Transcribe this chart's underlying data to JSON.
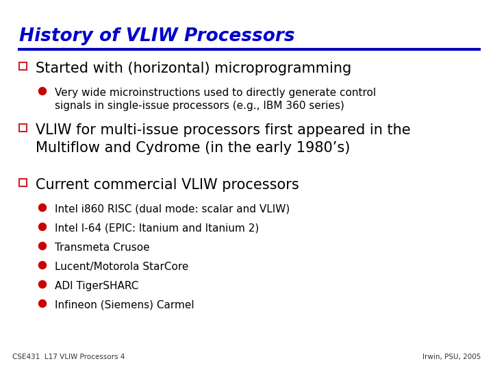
{
  "title": "History of VLIW Processors",
  "title_color": "#0000CC",
  "title_underline_color": "#0000BB",
  "background_color": "#FFFFFF",
  "bullet_color": "#CC0000",
  "text_color": "#000000",
  "footer_left": "CSE431  L17 VLIW Processors 4",
  "footer_right": "Irwin, PSU, 2005",
  "sq_face": "#FFFFFF",
  "sq_edge": "#CC2222",
  "items": [
    {
      "level": 1,
      "text": "Started with (horizontal) microprogramming",
      "font_size": 15
    },
    {
      "level": 2,
      "text": "Very wide microinstructions used to directly generate control\nsignals in single-issue processors (e.g., IBM 360 series)",
      "font_size": 11
    },
    {
      "level": 1,
      "text": "VLIW for multi-issue processors first appeared in the\nMultiflow and Cydrome (in the early 1980’s)",
      "font_size": 15
    },
    {
      "level": 1,
      "text": "Current commercial VLIW processors",
      "font_size": 15
    },
    {
      "level": 2,
      "text": "Intel i860 RISC (dual mode: scalar and VLIW)",
      "font_size": 11
    },
    {
      "level": 2,
      "text": "Intel I-64 (EPIC: Itanium and Itanium 2)",
      "font_size": 11
    },
    {
      "level": 2,
      "text": "Transmeta Crusoe",
      "font_size": 11
    },
    {
      "level": 2,
      "text": "Lucent/Motorola StarCore",
      "font_size": 11
    },
    {
      "level": 2,
      "text": "ADI TigerSHARC",
      "font_size": 11
    },
    {
      "level": 2,
      "text": "Infineon (Siemens) Carmel",
      "font_size": 11
    }
  ]
}
